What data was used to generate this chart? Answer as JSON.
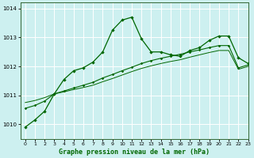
{
  "title": "Graphe pression niveau de la mer (hPa)",
  "bg_color": "#cdf0f0",
  "grid_color": "#ffffff",
  "line_color_main": "#006600",
  "line_color_light": "#2d7a2d",
  "xlim": [
    -0.5,
    23
  ],
  "ylim": [
    1009.5,
    1014.2
  ],
  "yticks": [
    1010,
    1011,
    1012,
    1013,
    1014
  ],
  "xticks": [
    0,
    1,
    2,
    3,
    4,
    5,
    6,
    7,
    8,
    9,
    10,
    11,
    12,
    13,
    14,
    15,
    16,
    17,
    18,
    19,
    20,
    21,
    22,
    23
  ],
  "series1_x": [
    0,
    1,
    2,
    3,
    4,
    5,
    6,
    7,
    8,
    9,
    10,
    11,
    12,
    13,
    14,
    15,
    16,
    17,
    18,
    19,
    20,
    21,
    22,
    23
  ],
  "series1_y": [
    1009.9,
    1010.15,
    1010.45,
    1011.05,
    1011.55,
    1011.85,
    1011.95,
    1012.15,
    1012.5,
    1013.25,
    1013.6,
    1013.7,
    1012.95,
    1012.5,
    1012.5,
    1012.4,
    1012.35,
    1012.55,
    1012.65,
    1012.9,
    1013.05,
    1013.05,
    1012.3,
    1012.1
  ],
  "series2_x": [
    0,
    1,
    2,
    3,
    4,
    5,
    6,
    7,
    8,
    9,
    10,
    11,
    12,
    13,
    14,
    15,
    16,
    17,
    18,
    19,
    20,
    21,
    22,
    23
  ],
  "series2_y": [
    1010.55,
    1010.65,
    1010.8,
    1011.05,
    1011.15,
    1011.25,
    1011.35,
    1011.45,
    1011.6,
    1011.72,
    1011.85,
    1011.97,
    1012.1,
    1012.2,
    1012.28,
    1012.35,
    1012.42,
    1012.5,
    1012.57,
    1012.65,
    1012.72,
    1012.72,
    1011.95,
    1012.05
  ],
  "series3_x": [
    0,
    1,
    2,
    3,
    4,
    5,
    6,
    7,
    8,
    9,
    10,
    11,
    12,
    13,
    14,
    15,
    16,
    17,
    18,
    19,
    20,
    21,
    22,
    23
  ],
  "series3_y": [
    1010.75,
    1010.82,
    1010.92,
    1011.05,
    1011.12,
    1011.2,
    1011.27,
    1011.35,
    1011.47,
    1011.58,
    1011.7,
    1011.82,
    1011.93,
    1012.02,
    1012.1,
    1012.17,
    1012.23,
    1012.32,
    1012.4,
    1012.48,
    1012.55,
    1012.55,
    1011.9,
    1012.0
  ]
}
